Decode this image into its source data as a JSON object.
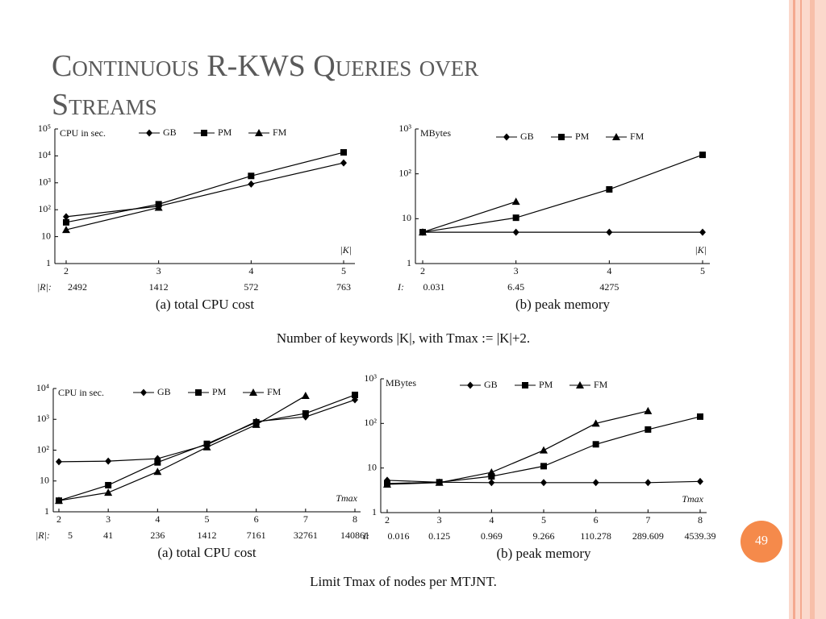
{
  "slide": {
    "title_line1": "Continuous R-KWS Queries over",
    "title_line2": "Streams",
    "caption_top": "Number of keywords |K|, with Tmax := |K|+2.",
    "caption_bottom": "Limit Tmax of nodes per MTJNT.",
    "page_number": "49"
  },
  "chart_data": [
    {
      "type": "line",
      "title": "(a) total CPU cost",
      "y_label": "CPU in sec.",
      "x_label": "|K|",
      "log_y": true,
      "categories": [
        "2",
        "3",
        "4",
        "5"
      ],
      "x2_name": "|R|:",
      "x2_labels": [
        "2492",
        "1412",
        "572",
        "763"
      ],
      "ylim": [
        1,
        100000
      ],
      "yticks": [
        1,
        10,
        {
          "value": 100,
          "label": "10²"
        },
        {
          "value": 1000,
          "label": "10³"
        },
        {
          "value": 10000,
          "label": "10⁴"
        },
        {
          "value": 100000,
          "label": "10⁵"
        }
      ],
      "series": [
        {
          "name": "GB",
          "color": "#000000",
          "marker": "diamond",
          "values": [
            55,
            135,
            900,
            5500
          ]
        },
        {
          "name": "PM",
          "color": "#000000",
          "marker": "square",
          "values": [
            34,
            160,
            1800,
            13500
          ]
        },
        {
          "name": "FM",
          "color": "#000000",
          "marker": "triangle",
          "values": [
            18,
            120,
            null,
            null
          ]
        }
      ]
    },
    {
      "type": "line",
      "title": "(b) peak memory",
      "y_label": "MBytes",
      "x_label": "|K|",
      "log_y": true,
      "categories": [
        "2",
        "3",
        "4",
        "5"
      ],
      "x2_name": "I:",
      "x2_labels": [
        "0.031",
        "6.45",
        "4275",
        null
      ],
      "ylim": [
        1,
        1000
      ],
      "yticks": [
        1,
        10,
        {
          "value": 100,
          "label": "10²"
        },
        {
          "value": 1000,
          "label": "10³"
        }
      ],
      "series": [
        {
          "name": "GB",
          "color": "#000000",
          "marker": "diamond",
          "values": [
            5,
            5,
            5,
            5
          ]
        },
        {
          "name": "PM",
          "color": "#000000",
          "marker": "square",
          "values": [
            5,
            10.5,
            45,
            265
          ]
        },
        {
          "name": "FM",
          "color": "#000000",
          "marker": "triangle",
          "values": [
            5,
            24,
            null,
            null
          ]
        }
      ]
    },
    {
      "type": "line",
      "title": "(a) total CPU cost",
      "y_label": "CPU in sec.",
      "x_label": "Tmax",
      "log_y": true,
      "categories": [
        "2",
        "3",
        "4",
        "5",
        "6",
        "7",
        "8"
      ],
      "x2_name": "|R|:",
      "x2_labels": [
        "5",
        "41",
        "236",
        "1412",
        "7161",
        "32761",
        "140861"
      ],
      "ylim": [
        1,
        10000
      ],
      "yticks": [
        1,
        10,
        {
          "value": 100,
          "label": "10²"
        },
        {
          "value": 1000,
          "label": "10³"
        },
        {
          "value": 10000,
          "label": "10⁴"
        }
      ],
      "series": [
        {
          "name": "GB",
          "color": "#000000",
          "marker": "diamond",
          "values": [
            42,
            44,
            53,
            150,
            850,
            1200,
            4300
          ]
        },
        {
          "name": "PM",
          "color": "#000000",
          "marker": "square",
          "values": [
            2.3,
            7.3,
            40,
            160,
            800,
            1550,
            6200
          ]
        },
        {
          "name": "FM",
          "color": "#000000",
          "marker": "triangle",
          "values": [
            2.3,
            4.2,
            20,
            125,
            670,
            5800,
            null
          ]
        }
      ]
    },
    {
      "type": "line",
      "title": "(b) peak memory",
      "y_label": "MBytes",
      "x_label": "Tmax",
      "log_y": true,
      "categories": [
        "2",
        "3",
        "4",
        "5",
        "6",
        "7",
        "8"
      ],
      "x2_name": "I:",
      "x2_labels": [
        "0.016",
        "0.125",
        "0.969",
        "9.266",
        "110.278",
        "289.609",
        "4539.39"
      ],
      "ylim": [
        1,
        1000
      ],
      "yticks": [
        1,
        10,
        {
          "value": 100,
          "label": "10²"
        },
        {
          "value": 1000,
          "label": "10³"
        }
      ],
      "series": [
        {
          "name": "GB",
          "color": "#000000",
          "marker": "diamond",
          "values": [
            5.3,
            4.8,
            4.7,
            4.7,
            4.7,
            4.7,
            5.0
          ]
        },
        {
          "name": "PM",
          "color": "#000000",
          "marker": "square",
          "values": [
            4.5,
            4.8,
            6.5,
            11,
            34,
            73,
            142
          ]
        },
        {
          "name": "FM",
          "color": "#000000",
          "marker": "triangle",
          "values": [
            4.3,
            4.7,
            8,
            25,
            100,
            190,
            null
          ]
        }
      ]
    }
  ]
}
